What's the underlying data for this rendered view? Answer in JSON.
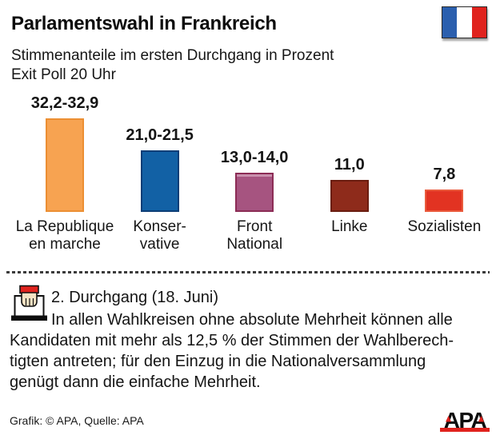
{
  "header": {
    "title": "Parlamentswahl in Frankreich",
    "subtitle_line1": "Stimmenanteile im ersten Durchgang in Prozent",
    "subtitle_line2": "Exit Poll 20 Uhr"
  },
  "flag": {
    "name": "france-flag",
    "blue": "#2B5FAE",
    "white": "#FFFFFF",
    "red": "#E0231E"
  },
  "chart_data": {
    "type": "bar",
    "title": "Stimmenanteile im ersten Durchgang in Prozent",
    "subtitle": "Exit Poll 20 Uhr",
    "ylabel": "Prozent",
    "ylim": [
      0,
      35
    ],
    "grid": false,
    "categories": [
      "La Republique en marche",
      "Konservative",
      "Front National",
      "Linke",
      "Sozialisten"
    ],
    "values_range": [
      [
        32.2,
        32.9
      ],
      [
        21.0,
        21.5
      ],
      [
        13.0,
        14.0
      ],
      [
        11.0,
        11.0
      ],
      [
        7.8,
        7.8
      ]
    ],
    "value_labels": [
      "32,2-32,9",
      "21,0-21,5",
      "13,0-14,0",
      "11,0",
      "7,8"
    ],
    "bars": [
      {
        "value_label": "32,2-32,9",
        "value_mid": 32.55,
        "label_lines": "La Republique\nen marche",
        "fill": "#F7A351",
        "border": "#EC8F33"
      },
      {
        "value_label": "21,0-21,5",
        "value_mid": 21.25,
        "label_lines": "Konser-\nvative",
        "fill": "#1261A5",
        "border": "#0C3E77"
      },
      {
        "value_label": "13,0-14,0",
        "value_mid": 13.5,
        "label_lines": "Front\nNational",
        "fill": "#A65480",
        "border": "#8C2C55",
        "highlight": "#C98FAD"
      },
      {
        "value_label": "11,0",
        "value_mid": 11.0,
        "label_lines": "Linke",
        "fill": "#8E2B1B",
        "border": "#6A1D10"
      },
      {
        "value_label": "7,8",
        "value_mid": 7.8,
        "label_lines": "Sozialisten",
        "fill": "#E23322",
        "border": "#EA5B3D"
      }
    ]
  },
  "second_round": {
    "heading": "2. Durchgang (18. Juni)",
    "lines": [
      "In allen Wahlkreisen ohne absolute Mehrheit können alle",
      "Kandidaten mit mehr als 12,5 % der Stimmen der Wahlberech-",
      "tigten antreten; für den Einzug in die Nationalversammlung",
      "genügt dann die einfache Mehrheit."
    ]
  },
  "footer": {
    "credit": "Grafik: © APA, Quelle: APA",
    "logo_text": "APA",
    "logo_red": "#E0231E"
  }
}
